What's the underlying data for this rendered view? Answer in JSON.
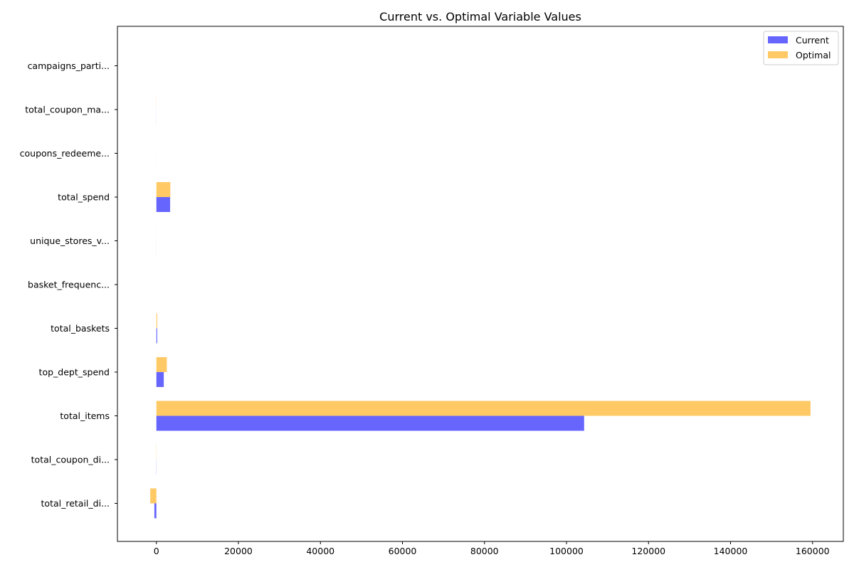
{
  "chart_data": {
    "type": "bar",
    "orientation": "horizontal",
    "title": "Current vs. Optimal Variable Values",
    "xlabel": "",
    "ylabel": "",
    "categories": [
      "campaigns_parti...",
      "total_coupon_ma...",
      "coupons_redeeme...",
      "total_spend",
      "unique_stores_v...",
      "basket_frequenc...",
      "total_baskets",
      "top_dept_spend",
      "total_items",
      "total_coupon_di...",
      "total_retail_di..."
    ],
    "series": [
      {
        "name": "Current",
        "color": "#6666ff",
        "values": [
          2,
          10,
          3,
          3350,
          5,
          1,
          200,
          1800,
          104300,
          -30,
          -500
        ]
      },
      {
        "name": "Optimal",
        "color": "#ffc966",
        "values": [
          3,
          15,
          5,
          3400,
          8,
          2,
          200,
          2550,
          159500,
          -40,
          -1500
        ]
      }
    ],
    "xlim": [
      -9500,
      167500
    ],
    "xticks": [
      0,
      20000,
      40000,
      60000,
      80000,
      100000,
      120000,
      140000,
      160000
    ],
    "grid": false,
    "legend_position": "top-right"
  }
}
